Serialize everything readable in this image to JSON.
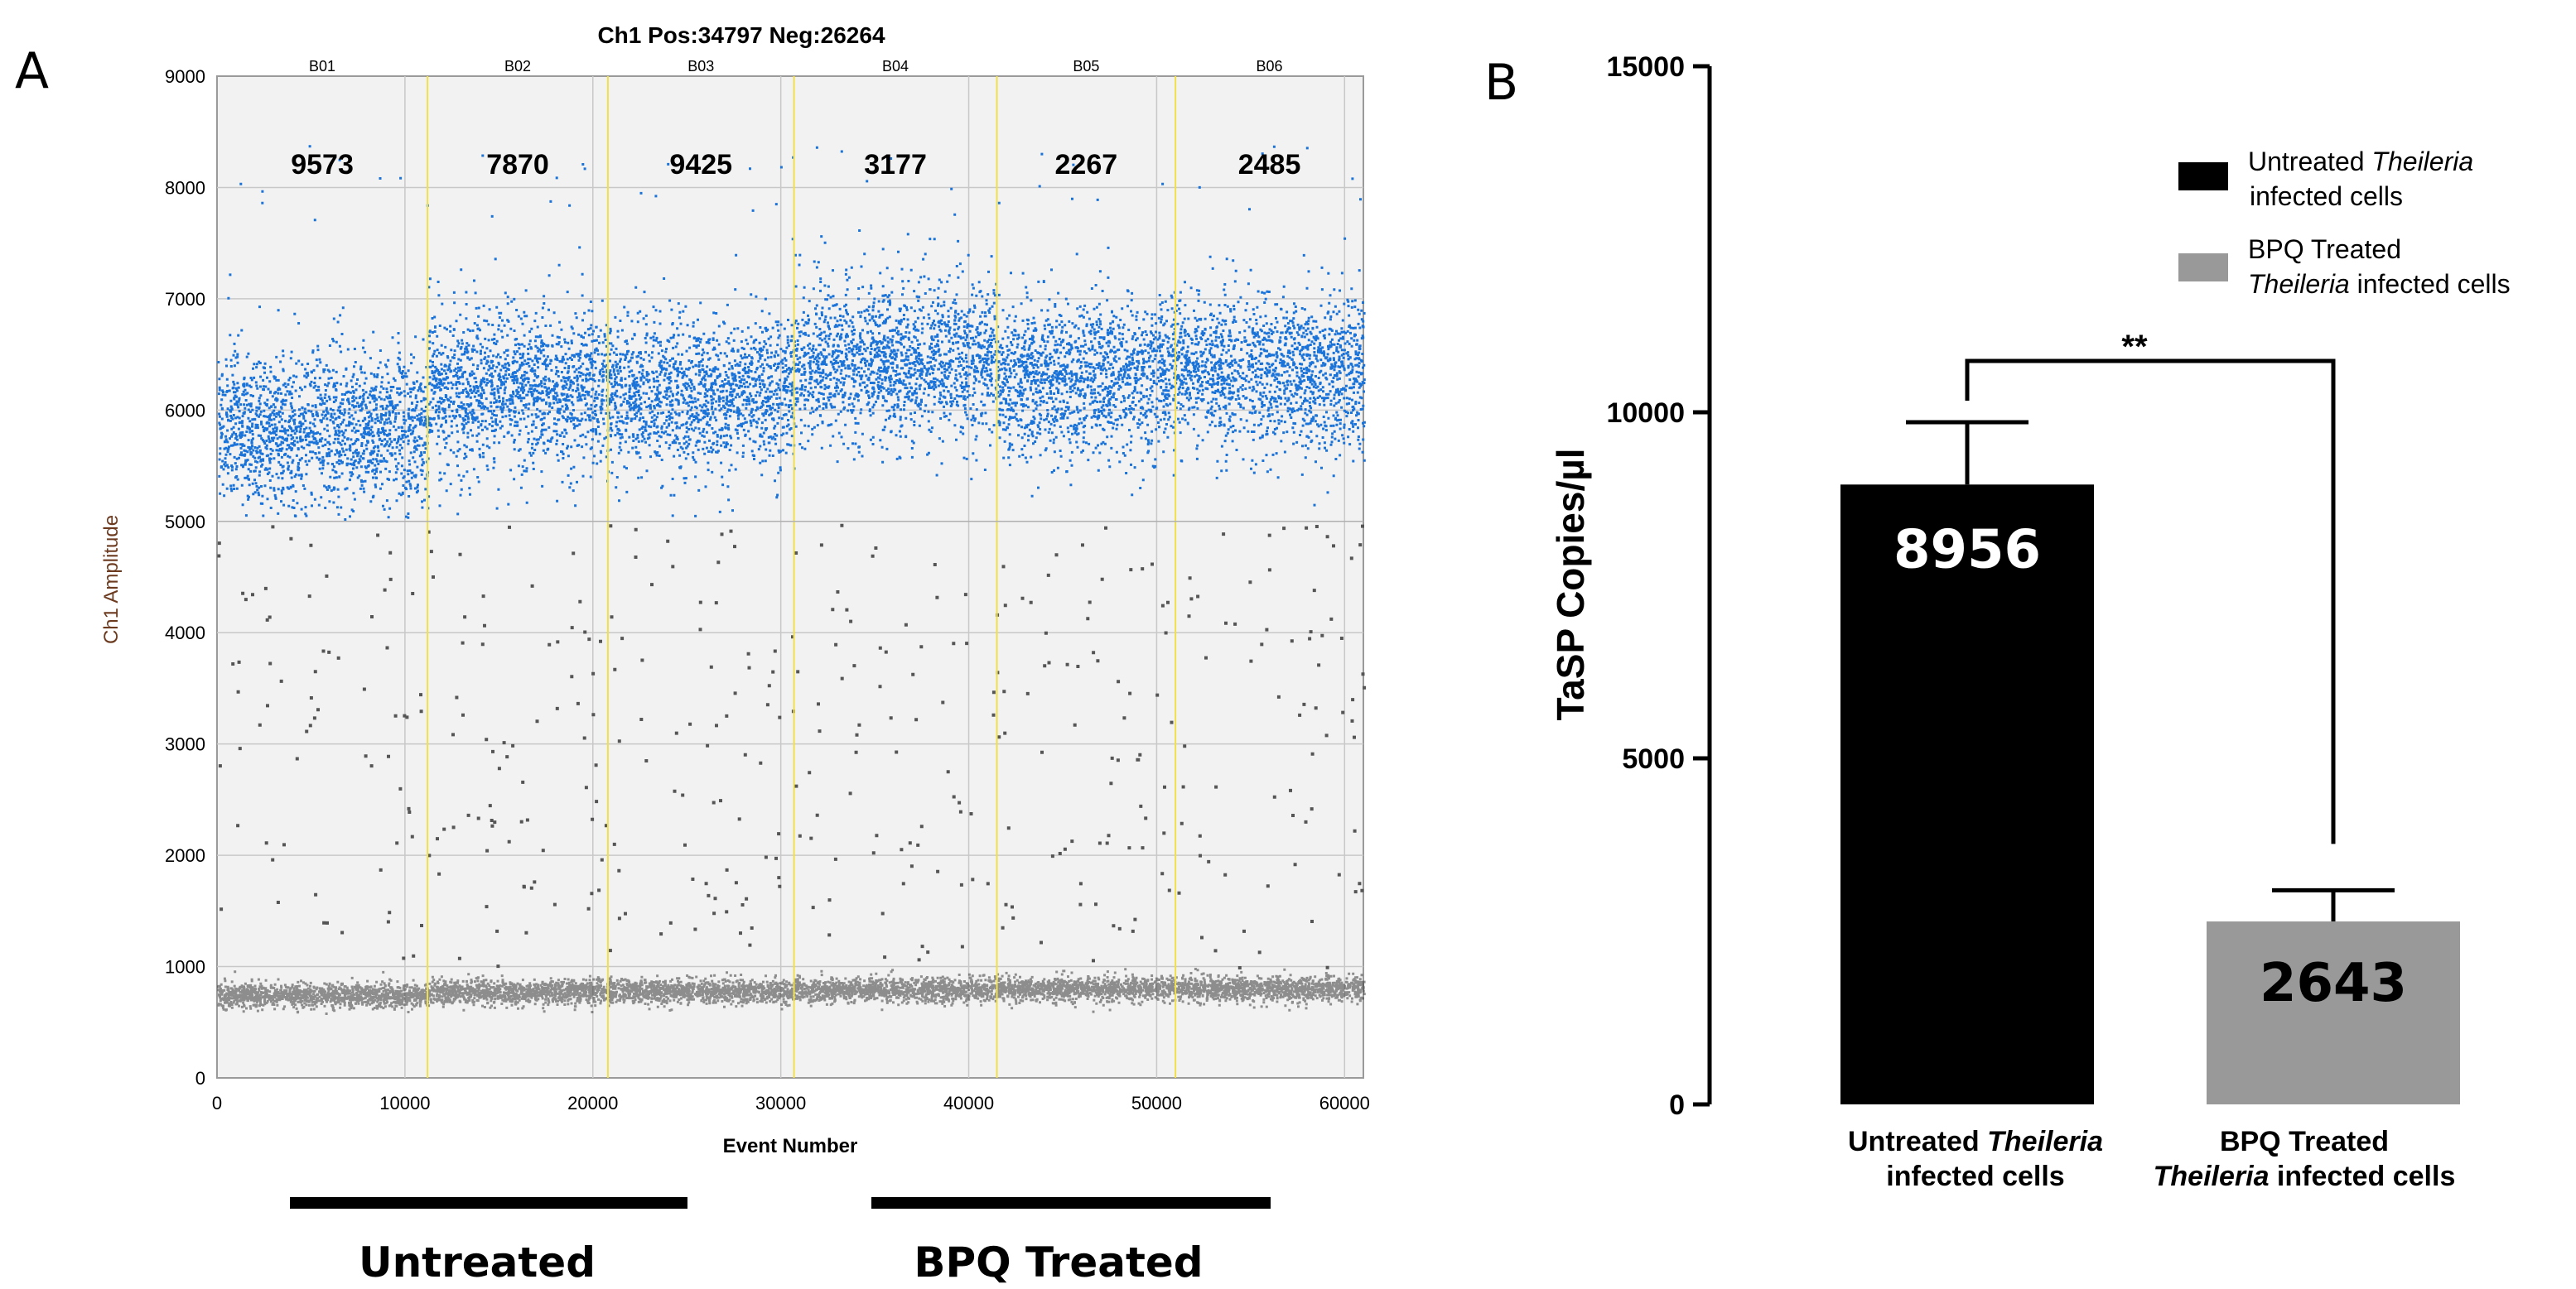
{
  "panel_a": {
    "letter": "A",
    "chart_data": {
      "type": "scatter",
      "title": "Ch1 Pos:34797 Neg:26264",
      "xlabel": "Event Number",
      "ylabel": "Ch1 Amplitude",
      "xlim": [
        0,
        61000
      ],
      "ylim": [
        0,
        9000
      ],
      "x_ticks": [
        0,
        10000,
        20000,
        30000,
        40000,
        50000,
        60000
      ],
      "y_ticks": [
        0,
        1000,
        2000,
        3000,
        4000,
        5000,
        6000,
        7000,
        8000,
        9000
      ],
      "grid": true,
      "wells": [
        {
          "name": "B01",
          "start": 0,
          "end": 11200,
          "positive_count": "9573",
          "pos_center": 5850,
          "neg_center": 750
        },
        {
          "name": "B02",
          "start": 11200,
          "end": 20800,
          "positive_count": "7870",
          "pos_center": 6200,
          "neg_center": 780
        },
        {
          "name": "B03",
          "start": 20800,
          "end": 30700,
          "positive_count": "9425",
          "pos_center": 6150,
          "neg_center": 790
        },
        {
          "name": "B04",
          "start": 30700,
          "end": 41500,
          "positive_count": "3177",
          "pos_center": 6450,
          "neg_center": 800
        },
        {
          "name": "B05",
          "start": 41500,
          "end": 51000,
          "positive_count": "2267",
          "pos_center": 6300,
          "neg_center": 810
        },
        {
          "name": "B06",
          "start": 51000,
          "end": 61000,
          "positive_count": "2485",
          "pos_center": 6350,
          "neg_center": 810
        }
      ],
      "well_boundaries": [
        11200,
        20800,
        30700,
        41500,
        51000
      ],
      "threshold": 5000,
      "colors": {
        "positive": "#1a73d9",
        "negative": "#444444",
        "boundary": "#f2e04a",
        "plot_bg": "#f2f2f2"
      }
    },
    "groups": [
      {
        "label": "Untreated",
        "from_well": "B01",
        "to_well": "B03"
      },
      {
        "label": "BPQ Treated",
        "from_well": "B04",
        "to_well": "B06"
      }
    ]
  },
  "panel_b": {
    "letter": "B",
    "chart_data": {
      "type": "bar",
      "ylabel": "TaSP Copies/µl",
      "ylim": [
        0,
        15000
      ],
      "y_ticks": [
        0,
        5000,
        10000,
        15000
      ],
      "categories": [
        {
          "line1_normal": "Untreated ",
          "line1_italic": "Theileria",
          "line2_normal": "infected cells",
          "line2_italic": ""
        },
        {
          "line1_normal": "BPQ Treated",
          "line1_italic": "",
          "line2_normal": " infected cells",
          "line2_italic": "Theileria"
        }
      ],
      "values": [
        8956,
        2643
      ],
      "value_labels": [
        "8956",
        "2643"
      ],
      "errors": [
        900,
        450
      ],
      "bar_colors": [
        "#000000",
        "#999999"
      ],
      "value_label_colors": [
        "#ffffff",
        "#000000"
      ],
      "significance": "**",
      "legend": [
        {
          "color": "#000000",
          "line1": "Untreated ",
          "line1_italic": "Theileria",
          "line2": " infected cells",
          "line2_italic": ""
        },
        {
          "color": "#999999",
          "line1": "BPQ Treated",
          "line1_italic": "",
          "line2": " infected cells",
          "line2_italic": "Theileria"
        }
      ]
    }
  }
}
